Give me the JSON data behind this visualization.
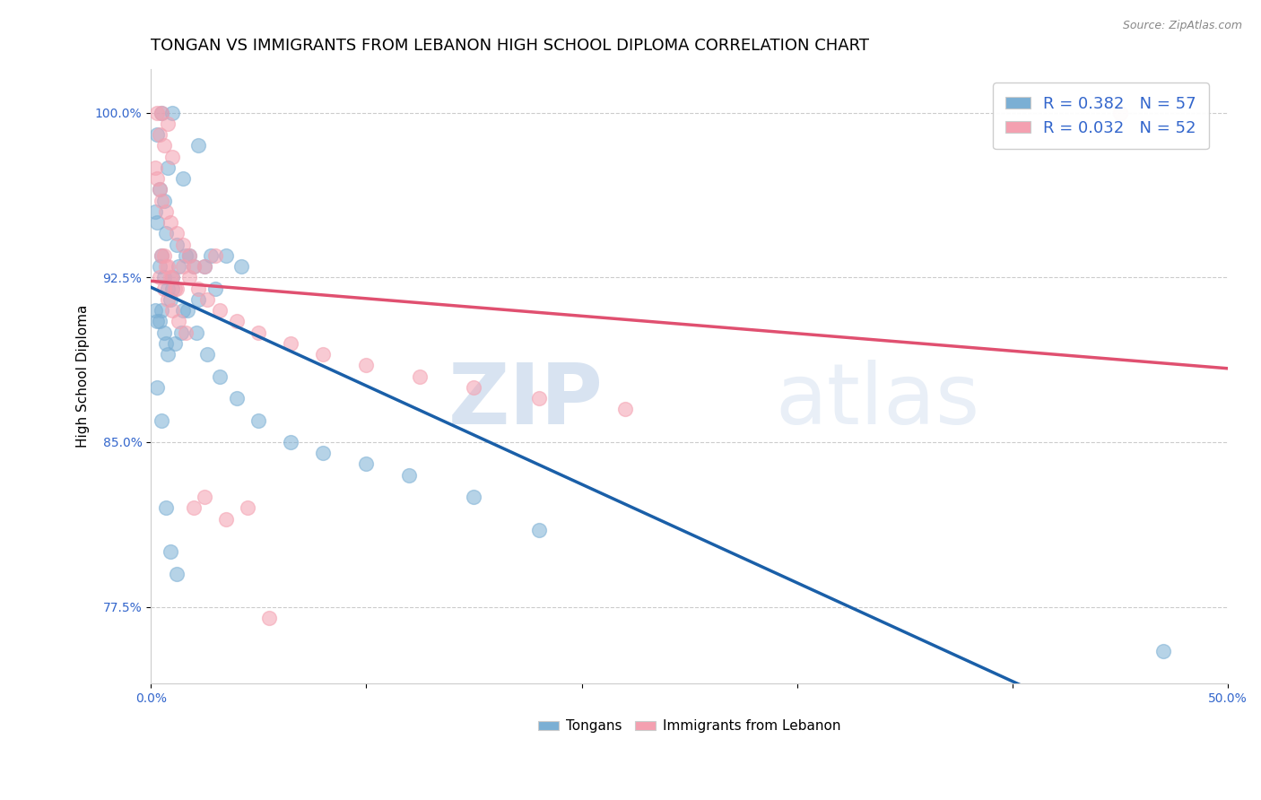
{
  "title": "TONGAN VS IMMIGRANTS FROM LEBANON HIGH SCHOOL DIPLOMA CORRELATION CHART",
  "source": "Source: ZipAtlas.com",
  "xlabel": "",
  "ylabel": "High School Diploma",
  "xlim": [
    0.0,
    50.0
  ],
  "ylim": [
    74.0,
    102.0
  ],
  "xticks": [
    0.0,
    10.0,
    20.0,
    30.0,
    40.0,
    50.0
  ],
  "xtick_labels": [
    "0.0%",
    "",
    "",
    "",
    "",
    "50.0%"
  ],
  "ytick_labels": [
    "77.5%",
    "85.0%",
    "92.5%",
    "100.0%"
  ],
  "yticks": [
    77.5,
    85.0,
    92.5,
    100.0
  ],
  "grid_color": "#cccccc",
  "background_color": "#ffffff",
  "blue_r": 0.382,
  "blue_n": 57,
  "pink_r": 0.032,
  "pink_n": 52,
  "legend_label_blue": "Tongans",
  "legend_label_pink": "Immigrants from Lebanon",
  "blue_color": "#7bafd4",
  "pink_color": "#f4a0b0",
  "trendline_blue": "#1a5fa8",
  "trendline_pink": "#e05070",
  "blue_scatter_x": [
    0.5,
    1.0,
    2.2,
    0.3,
    0.8,
    1.5,
    0.4,
    0.6,
    0.2,
    0.3,
    0.7,
    1.2,
    1.8,
    2.5,
    0.4,
    0.5,
    0.6,
    0.8,
    1.0,
    1.3,
    1.6,
    2.0,
    2.8,
    3.5,
    4.2,
    3.0,
    2.2,
    1.5,
    1.0,
    0.9,
    0.5,
    0.4,
    0.3,
    0.2,
    0.6,
    0.7,
    0.8,
    1.1,
    1.4,
    1.7,
    2.1,
    2.6,
    3.2,
    4.0,
    5.0,
    6.5,
    8.0,
    10.0,
    12.0,
    15.0,
    18.0,
    0.3,
    0.5,
    0.7,
    0.9,
    1.2,
    47.0
  ],
  "blue_scatter_y": [
    100.0,
    100.0,
    98.5,
    99.0,
    97.5,
    97.0,
    96.5,
    96.0,
    95.5,
    95.0,
    94.5,
    94.0,
    93.5,
    93.0,
    93.0,
    93.5,
    92.5,
    92.0,
    92.5,
    93.0,
    93.5,
    93.0,
    93.5,
    93.5,
    93.0,
    92.0,
    91.5,
    91.0,
    92.0,
    91.5,
    91.0,
    90.5,
    90.5,
    91.0,
    90.0,
    89.5,
    89.0,
    89.5,
    90.0,
    91.0,
    90.0,
    89.0,
    88.0,
    87.0,
    86.0,
    85.0,
    84.5,
    84.0,
    83.5,
    82.5,
    81.0,
    87.5,
    86.0,
    82.0,
    80.0,
    79.0,
    75.5
  ],
  "pink_scatter_x": [
    0.3,
    0.5,
    0.8,
    0.4,
    0.6,
    1.0,
    0.2,
    0.3,
    0.4,
    0.5,
    0.7,
    0.9,
    1.2,
    1.5,
    1.8,
    2.0,
    2.5,
    3.0,
    0.6,
    0.8,
    1.0,
    1.2,
    1.5,
    1.8,
    2.2,
    2.6,
    3.2,
    4.0,
    5.0,
    6.5,
    8.0,
    10.0,
    12.5,
    15.0,
    18.0,
    22.0,
    0.4,
    0.6,
    0.8,
    1.0,
    1.3,
    1.6,
    2.0,
    2.5,
    3.5,
    4.5,
    5.5,
    0.5,
    0.7,
    0.9,
    1.1,
    45.0
  ],
  "pink_scatter_y": [
    100.0,
    100.0,
    99.5,
    99.0,
    98.5,
    98.0,
    97.5,
    97.0,
    96.5,
    96.0,
    95.5,
    95.0,
    94.5,
    94.0,
    93.5,
    93.0,
    93.0,
    93.5,
    93.5,
    93.0,
    92.5,
    92.0,
    93.0,
    92.5,
    92.0,
    91.5,
    91.0,
    90.5,
    90.0,
    89.5,
    89.0,
    88.5,
    88.0,
    87.5,
    87.0,
    86.5,
    92.5,
    92.0,
    91.5,
    91.0,
    90.5,
    90.0,
    82.0,
    82.5,
    81.5,
    82.0,
    77.0,
    93.5,
    93.0,
    92.5,
    92.0,
    100.0
  ],
  "watermark_zip": "ZIP",
  "watermark_atlas": "atlas",
  "title_fontsize": 13,
  "axis_label_fontsize": 11,
  "tick_fontsize": 10,
  "legend_fontsize": 13
}
